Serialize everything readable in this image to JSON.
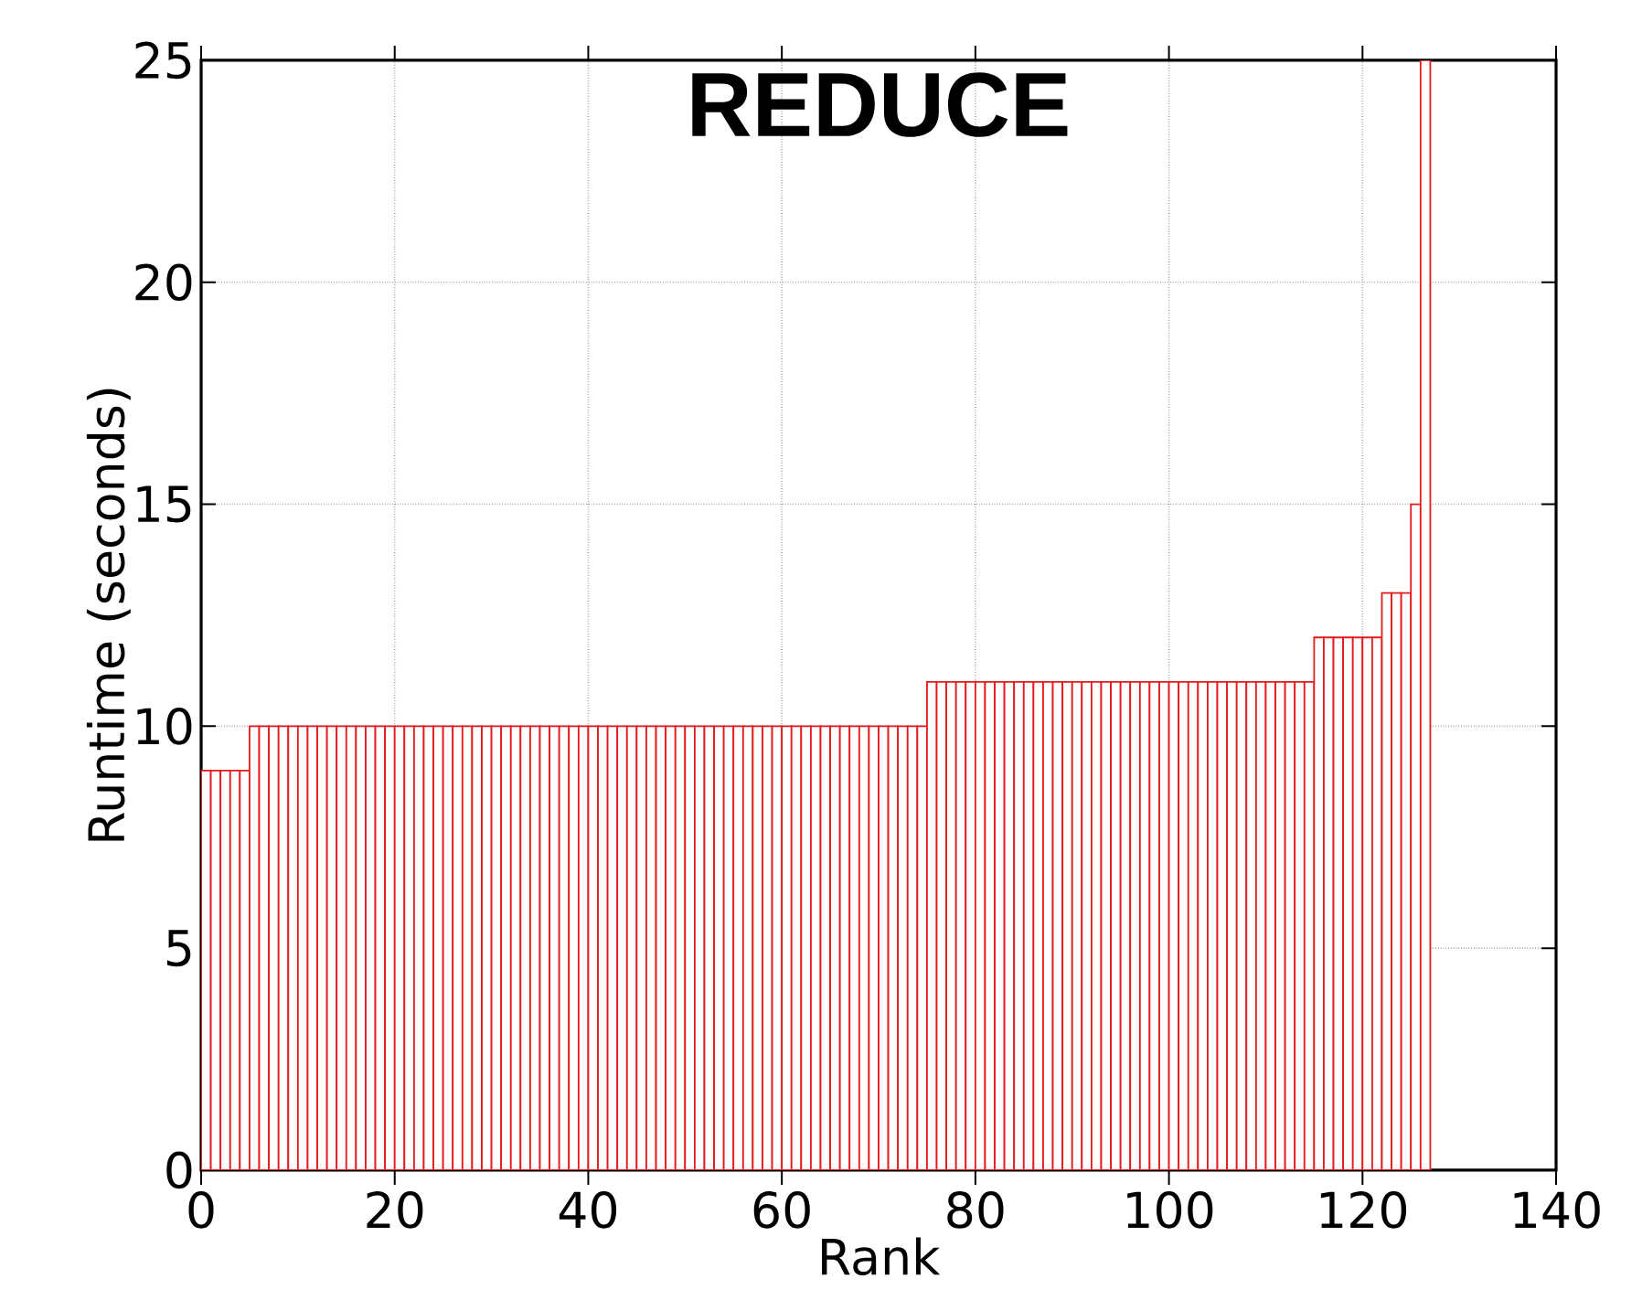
{
  "chart_data": {
    "type": "bar",
    "title": "REDUCE",
    "xlabel": "Rank",
    "ylabel": "Runtime (seconds)",
    "x": [
      0,
      1,
      2,
      3,
      4,
      5,
      6,
      7,
      8,
      9,
      10,
      11,
      12,
      13,
      14,
      15,
      16,
      17,
      18,
      19,
      20,
      21,
      22,
      23,
      24,
      25,
      26,
      27,
      28,
      29,
      30,
      31,
      32,
      33,
      34,
      35,
      36,
      37,
      38,
      39,
      40,
      41,
      42,
      43,
      44,
      45,
      46,
      47,
      48,
      49,
      50,
      51,
      52,
      53,
      54,
      55,
      56,
      57,
      58,
      59,
      60,
      61,
      62,
      63,
      64,
      65,
      66,
      67,
      68,
      69,
      70,
      71,
      72,
      73,
      74,
      75,
      76,
      77,
      78,
      79,
      80,
      81,
      82,
      83,
      84,
      85,
      86,
      87,
      88,
      89,
      90,
      91,
      92,
      93,
      94,
      95,
      96,
      97,
      98,
      99,
      100,
      101,
      102,
      103,
      104,
      105,
      106,
      107,
      108,
      109,
      110,
      111,
      112,
      113,
      114,
      115,
      116,
      117,
      118,
      119,
      120,
      121,
      122,
      123,
      124,
      125,
      126
    ],
    "values": [
      9,
      9,
      9,
      9,
      9,
      10,
      10,
      10,
      10,
      10,
      10,
      10,
      10,
      10,
      10,
      10,
      10,
      10,
      10,
      10,
      10,
      10,
      10,
      10,
      10,
      10,
      10,
      10,
      10,
      10,
      10,
      10,
      10,
      10,
      10,
      10,
      10,
      10,
      10,
      10,
      10,
      10,
      10,
      10,
      10,
      10,
      10,
      10,
      10,
      10,
      10,
      10,
      10,
      10,
      10,
      10,
      10,
      10,
      10,
      10,
      10,
      10,
      10,
      10,
      10,
      10,
      10,
      10,
      10,
      10,
      10,
      10,
      10,
      10,
      10,
      11,
      11,
      11,
      11,
      11,
      11,
      11,
      11,
      11,
      11,
      11,
      11,
      11,
      11,
      11,
      11,
      11,
      11,
      11,
      11,
      11,
      11,
      11,
      11,
      11,
      11,
      11,
      11,
      11,
      11,
      11,
      11,
      11,
      11,
      11,
      11,
      11,
      11,
      11,
      11,
      12,
      12,
      12,
      12,
      12,
      12,
      12,
      13,
      13,
      13,
      15,
      25
    ],
    "color": "#e41a1c",
    "xlim": [
      0,
      140
    ],
    "xticks": [
      0,
      20,
      40,
      60,
      80,
      100,
      120,
      140
    ],
    "ylim": [
      0,
      25
    ],
    "yticks": [
      0,
      5,
      10,
      15,
      20,
      25
    ],
    "grid": true
  }
}
